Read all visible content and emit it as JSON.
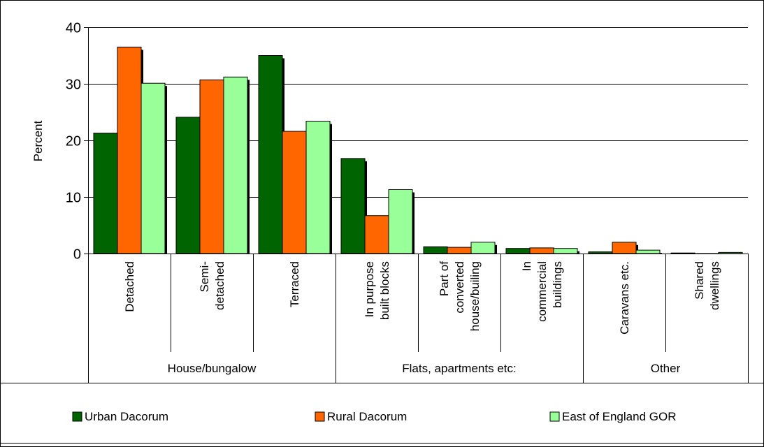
{
  "chart_data": {
    "type": "bar",
    "title": "",
    "ylabel": "Percent",
    "xlabel": "",
    "ylim": [
      0,
      40
    ],
    "yticks": [
      0,
      10,
      20,
      30,
      40
    ],
    "grid": true,
    "legend_position": "bottom",
    "categories": [
      {
        "lines": [
          "Detached"
        ]
      },
      {
        "lines": [
          "Semi-",
          "detached"
        ]
      },
      {
        "lines": [
          "Terraced"
        ]
      },
      {
        "lines": [
          "In purpose",
          "built blocks"
        ]
      },
      {
        "lines": [
          "Part of",
          "converted",
          "house/builing"
        ]
      },
      {
        "lines": [
          "In",
          "commercial",
          "buildings"
        ]
      },
      {
        "lines": [
          "Caravans etc."
        ]
      },
      {
        "lines": [
          "Shared",
          "dwellings"
        ]
      }
    ],
    "groups": [
      {
        "label": "House/bungalow",
        "start": 0,
        "end": 2
      },
      {
        "label": "Flats, apartments etc:",
        "start": 3,
        "end": 5
      },
      {
        "label": "Other",
        "start": 6,
        "end": 7
      }
    ],
    "series": [
      {
        "name": "Urban Dacorum",
        "color": "#006400",
        "values": [
          21.3,
          24.1,
          35.0,
          16.8,
          1.2,
          0.9,
          0.3,
          0.1
        ]
      },
      {
        "name": "Rural Dacorum",
        "color": "#ff6600",
        "values": [
          36.5,
          30.7,
          21.6,
          6.7,
          1.1,
          1.0,
          2.0,
          0.0
        ]
      },
      {
        "name": "East of England GOR",
        "color": "#99ff99",
        "values": [
          30.1,
          31.2,
          23.4,
          11.3,
          2.0,
          0.9,
          0.6,
          0.2
        ]
      }
    ]
  }
}
